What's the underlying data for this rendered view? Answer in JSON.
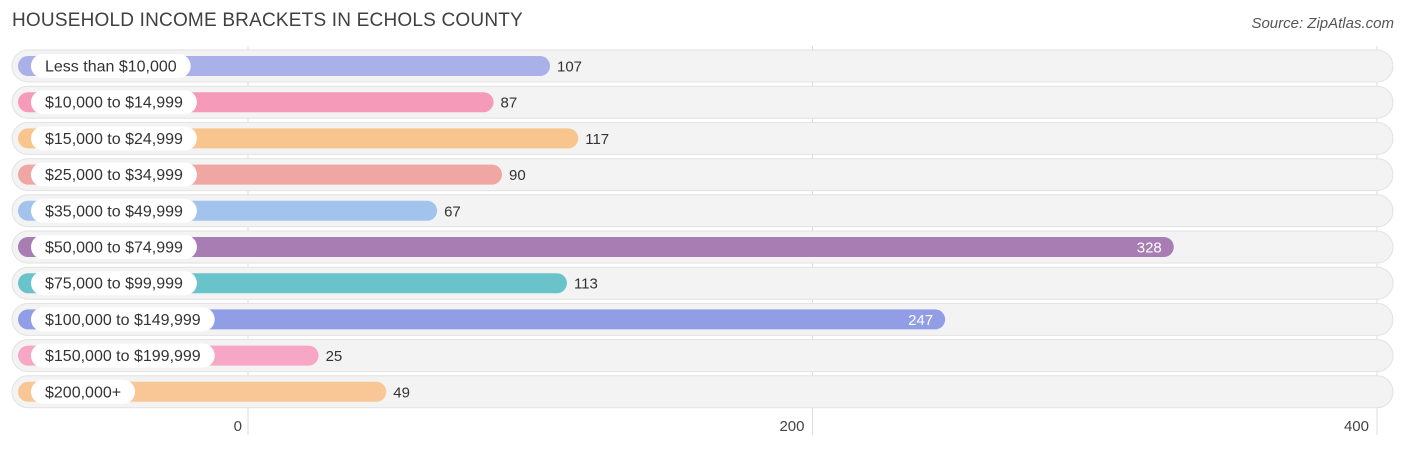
{
  "header": {
    "title": "HOUSEHOLD INCOME BRACKETS IN ECHOLS COUNTY",
    "source": "Source: ZipAtlas.com"
  },
  "chart_data": {
    "type": "bar",
    "orientation": "horizontal",
    "categories": [
      "Less than $10,000",
      "$10,000 to $14,999",
      "$15,000 to $24,999",
      "$25,000 to $34,999",
      "$35,000 to $49,999",
      "$50,000 to $74,999",
      "$75,000 to $99,999",
      "$100,000 to $149,999",
      "$150,000 to $199,999",
      "$200,000+"
    ],
    "values": [
      107,
      87,
      117,
      90,
      67,
      328,
      113,
      247,
      25,
      49
    ],
    "colors": [
      "#aab0e8",
      "#f59ab8",
      "#f9c58f",
      "#f0a6a2",
      "#a2c3ec",
      "#a87db4",
      "#6ac3cb",
      "#919ee6",
      "#f7a7c6",
      "#f9c796"
    ],
    "xlim": [
      0,
      400
    ],
    "xticks": [
      0,
      200,
      400
    ],
    "grid": true
  }
}
